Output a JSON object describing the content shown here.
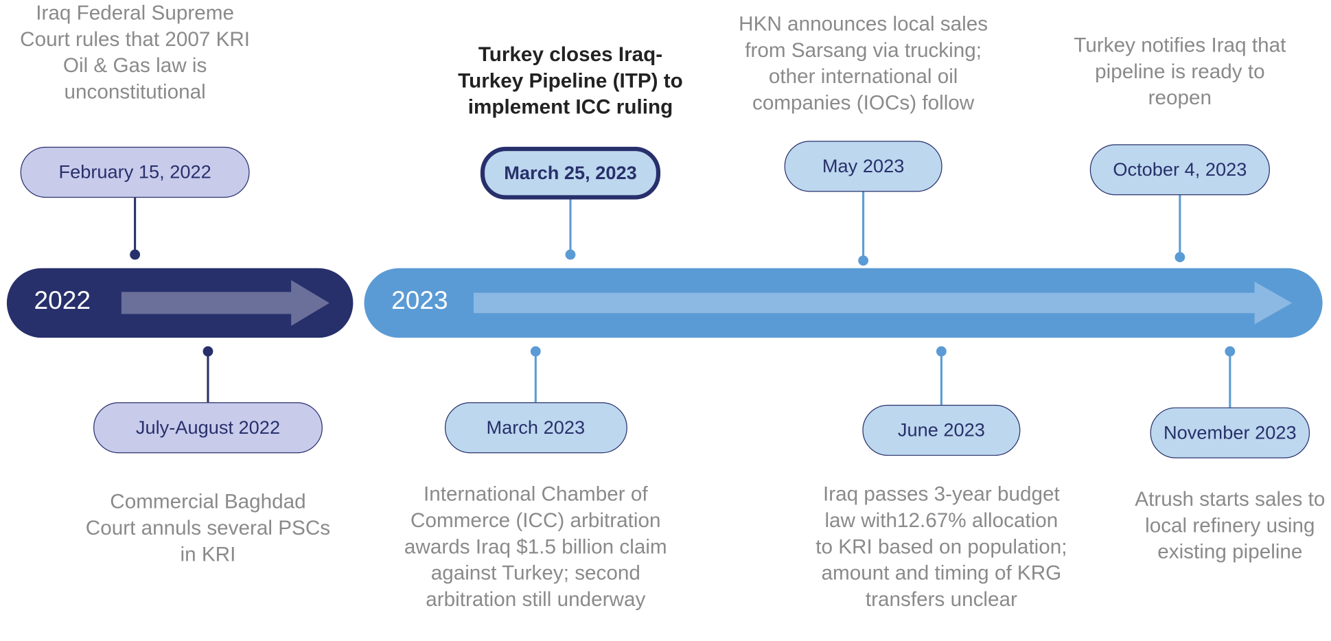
{
  "years": [
    "2022",
    "2023"
  ],
  "events": [
    {
      "date": "February 15, 2022",
      "description": "Iraq Federal Supreme Court rules that 2007 KRI Oil & Gas law is unconstitutional"
    },
    {
      "date": "July-August 2022",
      "description": "Commercial Baghdad Court annuls several PSCs in KRI"
    },
    {
      "date": "March 25, 2023",
      "description": "Turkey closes Iraq-Turkey Pipeline (ITP) to implement ICC ruling"
    },
    {
      "date": "March 2023",
      "description": "International Chamber of Commerce (ICC) arbitration awards Iraq $1.5 billion claim against Turkey; second arbitration still underway"
    },
    {
      "date": "May 2023",
      "description": "HKN announces local sales from Sarsang via trucking; other international oil companies (IOCs) follow"
    },
    {
      "date": "June 2023",
      "description": "Iraq passes 3-year budget law with12.67% allocation to KRI based on population; amount and timing of KRG transfers unclear"
    },
    {
      "date": "October 4, 2023",
      "description": "Turkey notifies Iraq that pipeline is ready to reopen"
    },
    {
      "date": "November 2023",
      "description": "Atrush starts sales to local refinery using existing pipeline"
    }
  ]
}
